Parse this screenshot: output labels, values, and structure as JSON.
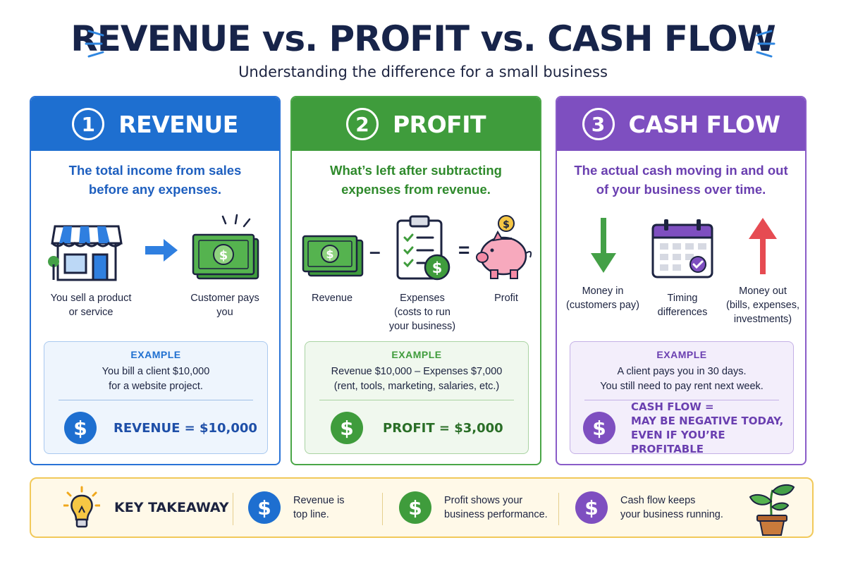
{
  "header": {
    "title": "REVENUE vs. PROFIT vs. CASH FLOW",
    "subtitle": "Understanding the difference for a small business"
  },
  "cards": [
    {
      "number": "1",
      "title": "REVENUE",
      "color": "#1e6fd0",
      "line1": "The total income from sales",
      "line2": "before any expenses.",
      "icons": [
        {
          "icon": "storefront-icon",
          "label1": "You sell a product",
          "label2": "or service"
        },
        {
          "icon": "arrow-right-icon"
        },
        {
          "icon": "cash-icon",
          "label1": "Customer pays",
          "label2": "you"
        }
      ],
      "example_label": "EXAMPLE",
      "example_line1": "You bill a client $10,000",
      "example_line2": "for a website project.",
      "result_line1": "REVENUE = $10,000"
    },
    {
      "number": "2",
      "title": "PROFIT",
      "color": "#3f9c3c",
      "line1": "What’s left after subtracting",
      "line2": "expenses from revenue.",
      "icons": [
        {
          "icon": "cash-icon",
          "label1": "Revenue"
        },
        {
          "icon": "minus-icon",
          "symbol": "–"
        },
        {
          "icon": "clipboard-checklist-icon",
          "label1": "Expenses",
          "label2": "(costs to run",
          "label3": "your business)"
        },
        {
          "icon": "equals-icon",
          "symbol": "="
        },
        {
          "icon": "piggy-bank-icon",
          "label1": "Profit"
        }
      ],
      "example_label": "EXAMPLE",
      "example_line1": "Revenue $10,000 – Expenses $7,000",
      "example_line2": "(rent, tools, marketing, salaries, etc.)",
      "result_line1": "PROFIT = $3,000"
    },
    {
      "number": "3",
      "title": "CASH FLOW",
      "color": "#7e4fc0",
      "line1": "The actual cash moving in and out",
      "line2": "of your business over time.",
      "icons": [
        {
          "icon": "arrow-down-icon",
          "label1": "Money in",
          "label2": "(customers pay)"
        },
        {
          "icon": "calendar-icon",
          "label1": "Timing",
          "label2": "differences"
        },
        {
          "icon": "arrow-up-icon",
          "label1": "Money out",
          "label2": "(bills, expenses,",
          "label3": "investments)"
        }
      ],
      "example_label": "EXAMPLE",
      "example_line1": "A client pays you in 30 days.",
      "example_line2": "You still need to pay rent next week.",
      "result_line1": "CASH FLOW =",
      "result_line2": "MAY BE NEGATIVE TODAY,",
      "result_line3": "EVEN IF YOU’RE PROFITABLE"
    }
  ],
  "takeaway": {
    "icon": "lightbulb-icon",
    "title": "KEY TAKEAWAY",
    "items": [
      {
        "line1": "Revenue is",
        "line2": "top line.",
        "color": "#1e6fd0"
      },
      {
        "line1": "Profit shows your",
        "line2": "business performance.",
        "color": "#3f9c3c"
      },
      {
        "line1": "Cash flow keeps",
        "line2": "your business running.",
        "color": "#7e4fc0"
      }
    ],
    "end_icon": "potted-plant-icon"
  },
  "dollar_symbol": "$"
}
